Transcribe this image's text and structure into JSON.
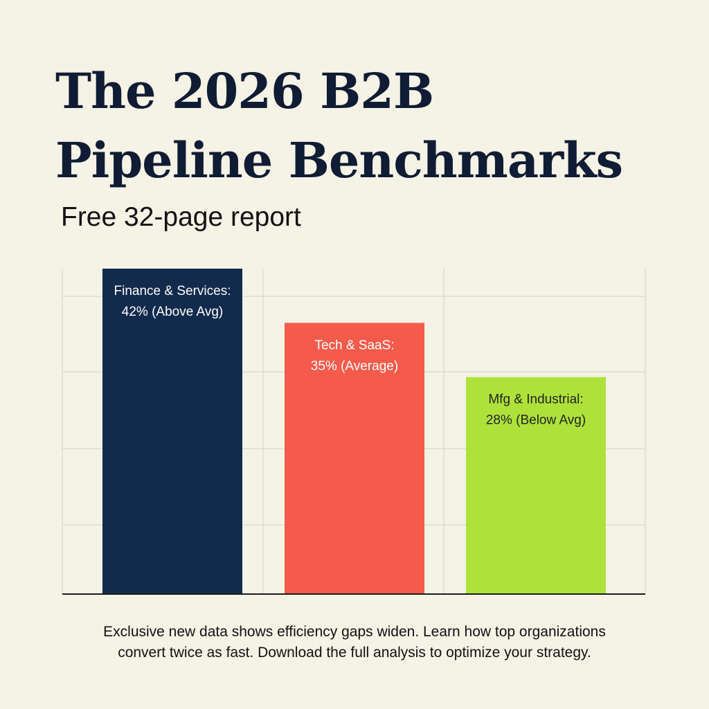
{
  "header": {
    "title_line1": "The 2026 B2B",
    "title_line2": "Pipeline Benchmarks",
    "subtitle": "Free 32-page report"
  },
  "chart_data": {
    "type": "bar",
    "title": "",
    "xlabel": "",
    "ylabel": "",
    "ylim": [
      0,
      42
    ],
    "grid": true,
    "categories": [
      "Finance & Services",
      "Tech & SaaS",
      "Mfg & Industrial"
    ],
    "values": [
      42,
      35,
      28
    ],
    "labels": [
      [
        "Finance & Services:",
        "42% (Above Avg)"
      ],
      [
        "Tech & SaaS:",
        "35% (Average)"
      ],
      [
        "Mfg & Industrial:",
        "28% (Below Avg)"
      ]
    ],
    "colors": [
      "#122a4c",
      "#f45b4b",
      "#aee23b"
    ],
    "label_colors": [
      "#ffffff",
      "#ffffff",
      "#222222"
    ]
  },
  "footer": {
    "line1": "Exclusive new data shows efficiency gaps widen. Learn how top organizations",
    "line2": "convert twice as fast. Download the full analysis to optimize your strategy."
  }
}
